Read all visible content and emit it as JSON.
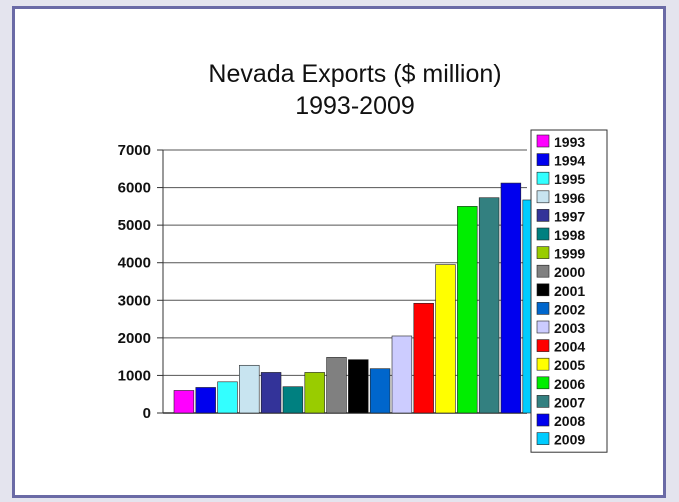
{
  "chart_data": {
    "type": "bar",
    "title": "Nevada Exports ($ million)",
    "subtitle": "1993-2009",
    "xlabel": "",
    "ylabel": "",
    "ylim": [
      0,
      7000
    ],
    "yticks": [
      0,
      1000,
      2000,
      3000,
      4000,
      5000,
      6000,
      7000
    ],
    "grid": "horizontal",
    "legend": "right",
    "series": [
      {
        "name": "1993",
        "value": 600,
        "color": "#ff00ff"
      },
      {
        "name": "1994",
        "value": 680,
        "color": "#0000ee"
      },
      {
        "name": "1995",
        "value": 830,
        "color": "#33ffff"
      },
      {
        "name": "1996",
        "value": 1270,
        "color": "#c8e4f0"
      },
      {
        "name": "1997",
        "value": 1080,
        "color": "#333399"
      },
      {
        "name": "1998",
        "value": 700,
        "color": "#008080"
      },
      {
        "name": "1999",
        "value": 1080,
        "color": "#99cc00"
      },
      {
        "name": "2000",
        "value": 1480,
        "color": "#808080"
      },
      {
        "name": "2001",
        "value": 1420,
        "color": "#000000"
      },
      {
        "name": "2002",
        "value": 1180,
        "color": "#0066cc"
      },
      {
        "name": "2003",
        "value": 2050,
        "color": "#ccccff"
      },
      {
        "name": "2004",
        "value": 2920,
        "color": "#ff0000"
      },
      {
        "name": "2005",
        "value": 3950,
        "color": "#ffff00"
      },
      {
        "name": "2006",
        "value": 5500,
        "color": "#00ee00"
      },
      {
        "name": "2007",
        "value": 5730,
        "color": "#338080"
      },
      {
        "name": "2008",
        "value": 6120,
        "color": "#0000ee"
      },
      {
        "name": "2009",
        "value": 5670,
        "color": "#00ccff"
      }
    ]
  }
}
